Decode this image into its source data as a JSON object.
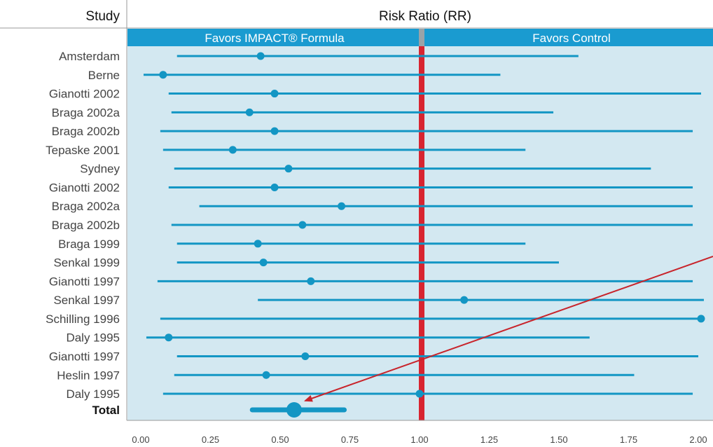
{
  "chart_data": {
    "type": "forest",
    "title": "Risk Ratio (RR)",
    "study_column_label": "Study",
    "band_left_label": "Favors IMPACT® Formula",
    "band_right_label": "Favors Control",
    "reference_line": 1.0,
    "xlim": [
      0.0,
      2.05
    ],
    "x_ticks": [
      "0.00",
      "0.25",
      "0.50",
      "0.75",
      "1.00",
      "1.25",
      "1.50",
      "1.75",
      "2.00"
    ],
    "studies": [
      {
        "name": "Amsterdam",
        "rr": 0.43,
        "lo": 0.13,
        "hi": 1.57
      },
      {
        "name": "Berne",
        "rr": 0.08,
        "lo": 0.01,
        "hi": 1.29
      },
      {
        "name": "Gianotti 2002",
        "rr": 0.48,
        "lo": 0.1,
        "hi": 2.01
      },
      {
        "name": "Braga 2002a",
        "rr": 0.39,
        "lo": 0.11,
        "hi": 1.48
      },
      {
        "name": "Braga 2002b",
        "rr": 0.48,
        "lo": 0.07,
        "hi": 1.98
      },
      {
        "name": "Tepaske 2001",
        "rr": 0.33,
        "lo": 0.08,
        "hi": 1.38
      },
      {
        "name": "Sydney",
        "rr": 0.53,
        "lo": 0.12,
        "hi": 1.83
      },
      {
        "name": "Gianotti 2002",
        "rr": 0.48,
        "lo": 0.1,
        "hi": 1.98
      },
      {
        "name": "Braga 2002a",
        "rr": 0.72,
        "lo": 0.21,
        "hi": 1.98
      },
      {
        "name": "Braga 2002b",
        "rr": 0.58,
        "lo": 0.11,
        "hi": 1.98
      },
      {
        "name": "Braga 1999",
        "rr": 0.42,
        "lo": 0.13,
        "hi": 1.38
      },
      {
        "name": "Senkal 1999",
        "rr": 0.44,
        "lo": 0.13,
        "hi": 1.5
      },
      {
        "name": "Gianotti 1997",
        "rr": 0.61,
        "lo": 0.06,
        "hi": 1.98
      },
      {
        "name": "Senkal 1997",
        "rr": 1.16,
        "lo": 0.42,
        "hi": 2.02
      },
      {
        "name": "Schilling 1996",
        "rr": 2.01,
        "lo": 0.07,
        "hi": 2.02
      },
      {
        "name": "Daly 1995",
        "rr": 0.1,
        "lo": 0.02,
        "hi": 1.61
      },
      {
        "name": "Gianotti 1997",
        "rr": 0.59,
        "lo": 0.13,
        "hi": 2.0
      },
      {
        "name": "Heslin 1997",
        "rr": 0.45,
        "lo": 0.12,
        "hi": 1.77
      },
      {
        "name": "Daly 1995",
        "rr": 1.0,
        "lo": 0.08,
        "hi": 1.98
      }
    ],
    "total": {
      "name": "Total",
      "rr": 0.55,
      "lo": 0.4,
      "hi": 0.73
    },
    "colors": {
      "band": "#1a9bd0",
      "plot_background": "#d3e8f1",
      "marker": "#1396c4",
      "reference_line": "#d82430",
      "reference_line_stripe": "#9aa3a8",
      "arrow": "#c8242b"
    },
    "grid": false,
    "annotation_arrow_target": "Total"
  }
}
